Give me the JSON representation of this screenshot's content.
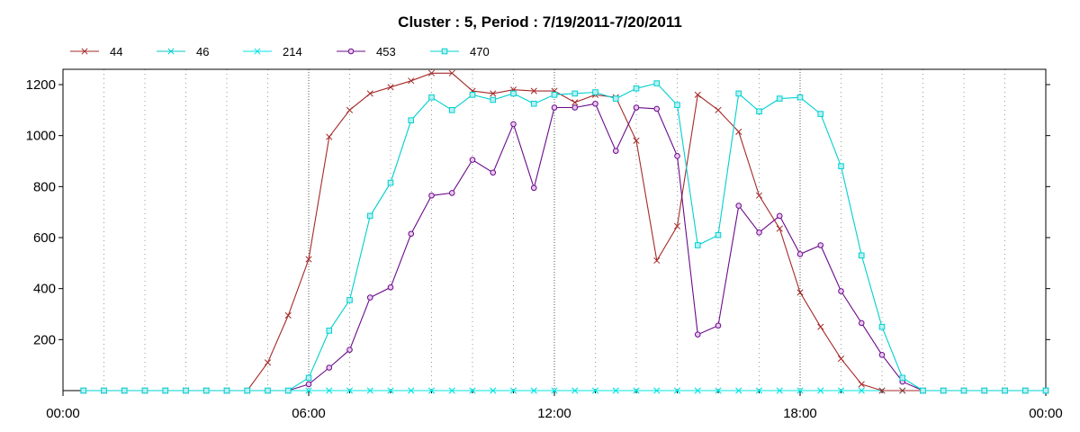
{
  "chart_data": {
    "type": "line",
    "title": "Cluster : 5, Period : 7/19/2011-7/20/2011",
    "xlabel": "",
    "ylabel": "",
    "x_range_hours": [
      0,
      24
    ],
    "ylim": [
      0,
      1260
    ],
    "x_tick_labels": [
      "00:00",
      "06:00",
      "12:00",
      "18:00",
      "00:00"
    ],
    "y_ticks": [
      200,
      400,
      600,
      800,
      1000,
      1200
    ],
    "grid": "vertical dotted",
    "legend_position": "top-left",
    "times": [
      "00:30",
      "01:00",
      "01:30",
      "02:00",
      "02:30",
      "03:00",
      "03:30",
      "04:00",
      "04:30",
      "05:00",
      "05:30",
      "06:00",
      "06:30",
      "07:00",
      "07:30",
      "08:00",
      "08:30",
      "09:00",
      "09:30",
      "10:00",
      "10:30",
      "11:00",
      "11:30",
      "12:00",
      "12:30",
      "13:00",
      "13:30",
      "14:00",
      "14:30",
      "15:00",
      "15:30",
      "16:00",
      "16:30",
      "17:00",
      "17:30",
      "18:00",
      "18:30",
      "19:00",
      "19:30",
      "20:00",
      "20:30",
      "21:00",
      "21:30",
      "22:00",
      "22:30",
      "23:00",
      "23:30",
      "24:00"
    ],
    "series": [
      {
        "name": "44",
        "color": "#a52a2a",
        "marker": "x",
        "values": [
          0,
          0,
          0,
          0,
          0,
          0,
          0,
          0,
          0,
          110,
          295,
          515,
          995,
          1100,
          1165,
          1190,
          1215,
          1245,
          1245,
          1175,
          1165,
          1180,
          1175,
          1175,
          1130,
          1160,
          1150,
          980,
          510,
          645,
          1160,
          1100,
          1015,
          765,
          635,
          385,
          250,
          125,
          25,
          0,
          0,
          0,
          0,
          0,
          0,
          0,
          0,
          0
        ]
      },
      {
        "name": "46",
        "color": "#00c8c8",
        "marker": "asterisk",
        "values": [
          0,
          0,
          0,
          0,
          0,
          0,
          0,
          0,
          0,
          0,
          0,
          0,
          0,
          0,
          0,
          0,
          0,
          0,
          0,
          0,
          0,
          0,
          0,
          0,
          0,
          0,
          0,
          0,
          0,
          0,
          0,
          0,
          0,
          0,
          0,
          0,
          0,
          0,
          0,
          0,
          0,
          0,
          0,
          0,
          0,
          0,
          0,
          0
        ]
      },
      {
        "name": "214",
        "color": "#00e6e6",
        "marker": "x",
        "values": [
          0,
          0,
          0,
          0,
          0,
          0,
          0,
          0,
          0,
          0,
          0,
          0,
          0,
          0,
          0,
          0,
          0,
          0,
          0,
          0,
          0,
          0,
          0,
          0,
          0,
          0,
          0,
          0,
          0,
          0,
          0,
          0,
          0,
          0,
          0,
          0,
          0,
          0,
          0,
          0,
          0,
          0,
          0,
          0,
          0,
          0,
          0,
          0
        ]
      },
      {
        "name": "453",
        "color": "#6a0a8a",
        "marker": "circle",
        "values": [
          0,
          0,
          0,
          0,
          0,
          0,
          0,
          0,
          0,
          0,
          0,
          25,
          90,
          160,
          365,
          405,
          615,
          765,
          775,
          905,
          855,
          1045,
          795,
          1110,
          1110,
          1125,
          940,
          1110,
          1105,
          920,
          220,
          255,
          725,
          620,
          685,
          535,
          570,
          390,
          265,
          140,
          35,
          0,
          0,
          0,
          0,
          0,
          0,
          0
        ]
      },
      {
        "name": "470",
        "color": "#00d0d0",
        "marker": "square",
        "values": [
          0,
          0,
          0,
          0,
          0,
          0,
          0,
          0,
          0,
          0,
          0,
          50,
          235,
          355,
          685,
          815,
          1060,
          1150,
          1100,
          1160,
          1140,
          1165,
          1125,
          1160,
          1165,
          1170,
          1145,
          1185,
          1205,
          1120,
          570,
          610,
          1165,
          1095,
          1145,
          1150,
          1085,
          880,
          530,
          250,
          50,
          0,
          0,
          0,
          0,
          0,
          0,
          0
        ]
      }
    ]
  }
}
